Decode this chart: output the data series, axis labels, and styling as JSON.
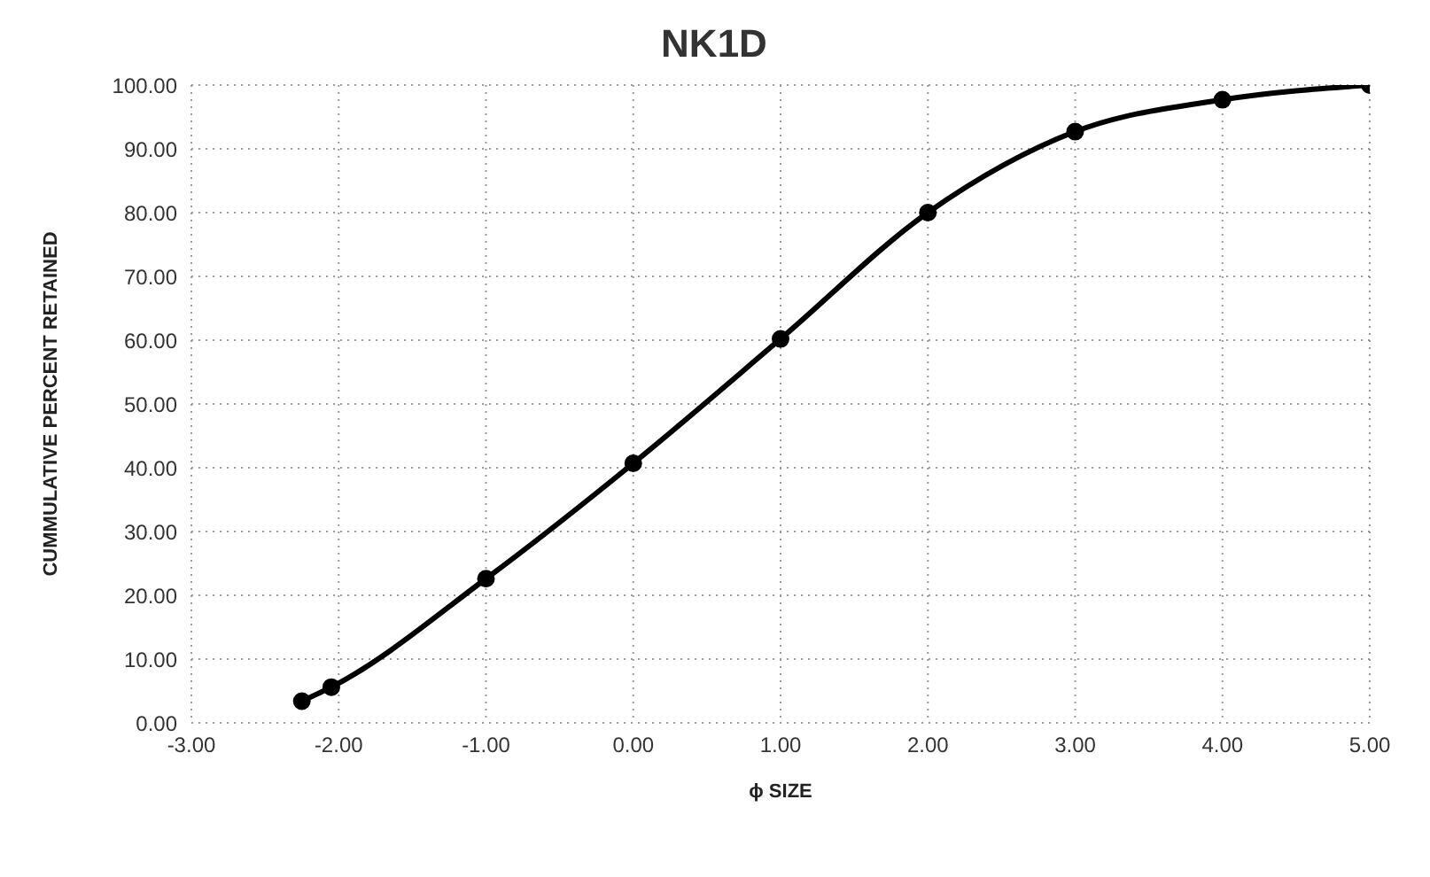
{
  "chart_data": {
    "type": "line",
    "title": "NK1D",
    "xlabel": "ϕ SIZE",
    "ylabel": "CUMMULATIVE PERCENT RETAINED",
    "x": [
      -2.25,
      -2.05,
      -1,
      0,
      1,
      2,
      3,
      4,
      5
    ],
    "series": [
      {
        "color": "#000000",
        "values": [
          3.4,
          5.6,
          22.6,
          40.7,
          60.2,
          80,
          92.7,
          97.7,
          100
        ]
      }
    ],
    "xlim": [
      -3,
      5
    ],
    "xticks": [
      {
        "value": -3,
        "label": "-3.00"
      },
      {
        "value": -2,
        "label": "-2.00"
      },
      {
        "value": -1,
        "label": "-1.00"
      },
      {
        "value": 0,
        "label": "0.00"
      },
      {
        "value": 1,
        "label": "1.00"
      },
      {
        "value": 2,
        "label": "2.00"
      },
      {
        "value": 3,
        "label": "3.00"
      },
      {
        "value": 4,
        "label": "4.00"
      },
      {
        "value": 5,
        "label": "5.00"
      }
    ],
    "ylim": [
      0,
      100
    ],
    "yticks": [
      {
        "value": 0,
        "label": "0.00"
      },
      {
        "value": 10,
        "label": "10.00"
      },
      {
        "value": 20,
        "label": "20.00"
      },
      {
        "value": 30,
        "label": "30.00"
      },
      {
        "value": 40,
        "label": "40.00"
      },
      {
        "value": 50,
        "label": "50.00"
      },
      {
        "value": 60,
        "label": "60.00"
      },
      {
        "value": 70,
        "label": "70.00"
      },
      {
        "value": 80,
        "label": "80.00"
      },
      {
        "value": 90,
        "label": "90.00"
      },
      {
        "value": 100,
        "label": "100.00"
      }
    ],
    "grid": true,
    "marker": "circle",
    "line_style": "solid"
  }
}
